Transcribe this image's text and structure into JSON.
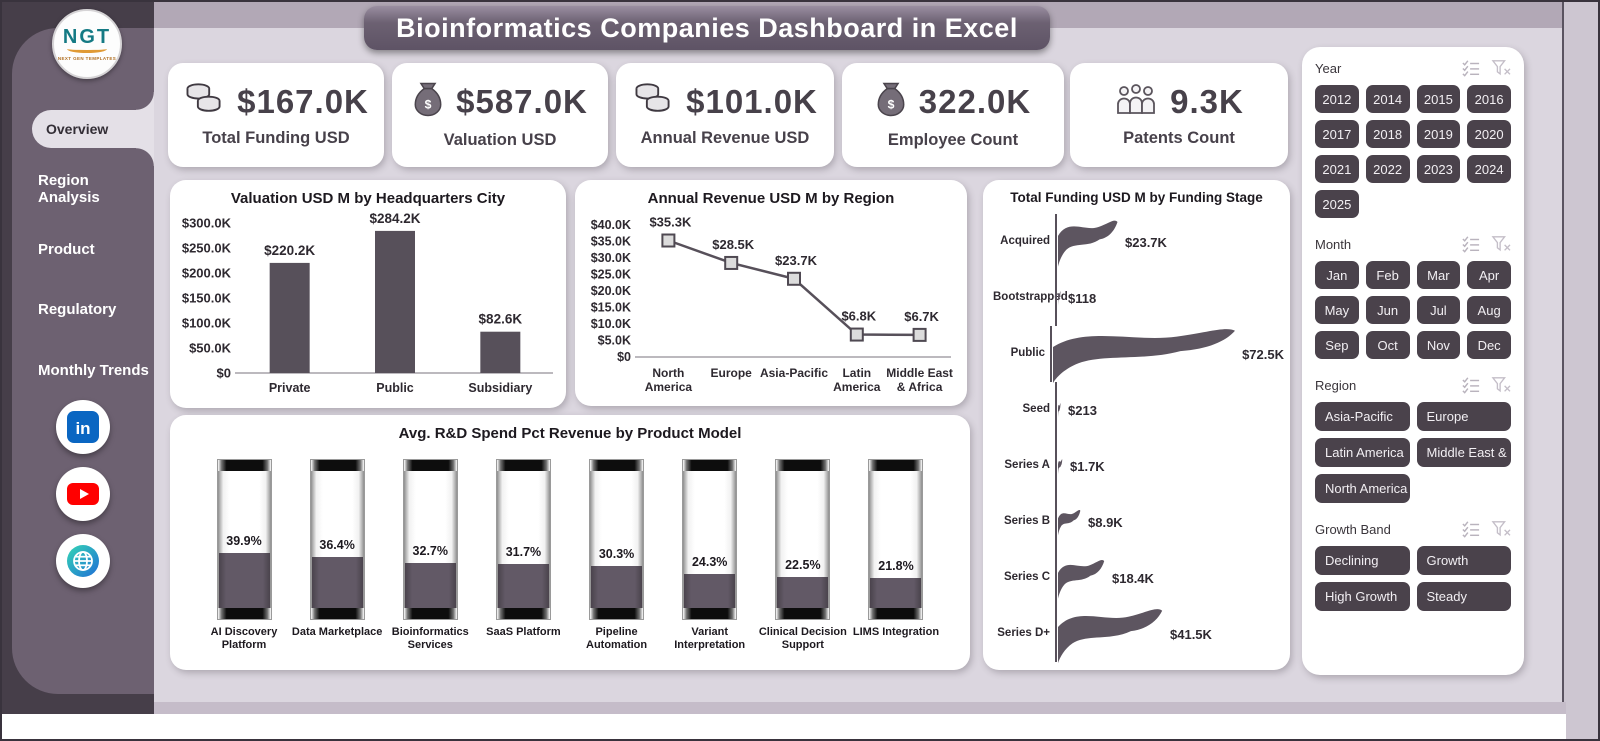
{
  "title_banner": "Bioinformatics Companies Dashboard in Excel",
  "logo": {
    "text": "NGT",
    "subtext": "NEXT GEN TEMPLATES"
  },
  "sidebar": {
    "items": [
      {
        "label": "Overview",
        "active": true
      },
      {
        "label": "Region Analysis",
        "active": false
      },
      {
        "label": "Product",
        "active": false
      },
      {
        "label": "Regulatory",
        "active": false
      },
      {
        "label": "Monthly Trends",
        "active": false
      }
    ],
    "social": [
      "linkedin",
      "youtube",
      "website"
    ]
  },
  "kpis": [
    {
      "icon": "coins-icon",
      "value": "$167.0K",
      "label": "Total Funding USD"
    },
    {
      "icon": "money-bag-icon",
      "value": "$587.0K",
      "label": "Valuation USD"
    },
    {
      "icon": "coins-icon",
      "value": "$101.0K",
      "label": "Annual Revenue USD"
    },
    {
      "icon": "money-bag-icon",
      "value": "322.0K",
      "label": "Employee Count"
    },
    {
      "icon": "people-icon",
      "value": "9.3K",
      "label": "Patents Count"
    }
  ],
  "chart_data": [
    {
      "type": "bar",
      "title": "Valuation USD M by Headquarters City",
      "categories": [
        "Private",
        "Public",
        "Subsidiary"
      ],
      "values": [
        220.2,
        284.2,
        82.6
      ],
      "value_labels": [
        "$220.2K",
        "$284.2K",
        "$82.6K"
      ],
      "yticks": [
        "$300.0K",
        "$250.0K",
        "$200.0K",
        "$150.0K",
        "$100.0K",
        "$50.0K",
        "$0"
      ],
      "ylim": [
        0,
        300
      ],
      "xlabel": "",
      "ylabel": "",
      "grid": false,
      "legend": "none"
    },
    {
      "type": "line",
      "title": "Annual Revenue USD M by Region",
      "categories": [
        [
          "North",
          "America"
        ],
        [
          "Europe"
        ],
        [
          "Asia-Pacific"
        ],
        [
          "Latin",
          "America"
        ],
        [
          "Middle East",
          "& Africa"
        ]
      ],
      "values": [
        35.3,
        28.5,
        23.7,
        6.8,
        6.7
      ],
      "value_labels": [
        "$35.3K",
        "$28.5K",
        "$23.7K",
        "$6.8K",
        "$6.7K"
      ],
      "yticks": [
        "$40.0K",
        "$35.0K",
        "$30.0K",
        "$25.0K",
        "$20.0K",
        "$15.0K",
        "$10.0K",
        "$5.0K",
        "$0"
      ],
      "ylim": [
        0,
        40
      ],
      "marker": "square",
      "grid": false,
      "legend": "none"
    },
    {
      "type": "bar",
      "subtype": "horizontal-flag",
      "title": "Total Funding USD M by Funding Stage",
      "categories": [
        "Acquired",
        "Bootstrapped",
        "Public",
        "Seed",
        "Series A",
        "Series B",
        "Series C",
        "Series D+"
      ],
      "values": [
        23.7,
        0.118,
        72.5,
        0.213,
        1.7,
        8.9,
        18.4,
        41.5
      ],
      "value_labels": [
        "$23.7K",
        "$118",
        "$72.5K",
        "$213",
        "$1.7K",
        "$8.9K",
        "$18.4K",
        "$41.5K"
      ],
      "xlim": [
        0,
        72.5
      ],
      "grid": false,
      "legend": "none"
    },
    {
      "type": "bar",
      "subtype": "thermometer",
      "title": "Avg. R&D Spend Pct Revenue by Product Model",
      "categories": [
        [
          "AI Discovery",
          "Platform"
        ],
        [
          "Data Marketplace"
        ],
        [
          "Bioinformatics",
          "Services"
        ],
        [
          "SaaS Platform"
        ],
        [
          "Pipeline Automation"
        ],
        [
          "Variant",
          "Interpretation"
        ],
        [
          "Clinical Decision",
          "Support"
        ],
        [
          "LIMS Integration"
        ]
      ],
      "values": [
        39.9,
        36.4,
        32.7,
        31.7,
        30.3,
        24.3,
        22.5,
        21.8
      ],
      "value_labels": [
        "39.9%",
        "36.4%",
        "32.7%",
        "31.7%",
        "30.3%",
        "24.3%",
        "22.5%",
        "21.8%"
      ],
      "ylim": [
        0,
        100
      ],
      "grid": false,
      "legend": "none"
    }
  ],
  "slicers": [
    {
      "title": "Year",
      "columns": 4,
      "options": [
        "2012",
        "2014",
        "2015",
        "2016",
        "2017",
        "2018",
        "2019",
        "2020",
        "2021",
        "2022",
        "2023",
        "2024",
        "2025"
      ]
    },
    {
      "title": "Month",
      "columns": 4,
      "options": [
        "Jan",
        "Feb",
        "Mar",
        "Apr",
        "May",
        "Jun",
        "Jul",
        "Aug",
        "Sep",
        "Oct",
        "Nov",
        "Dec"
      ]
    },
    {
      "title": "Region",
      "columns": 2,
      "options": [
        "Asia-Pacific",
        "Europe",
        "Latin America",
        "Middle East & ...",
        "North America"
      ]
    },
    {
      "title": "Growth Band",
      "columns": 2,
      "options": [
        "Declining",
        "Growth",
        "High Growth",
        "Steady"
      ]
    }
  ],
  "colors": {
    "sidebar": "#6d6171",
    "backing": "#463e49",
    "main_bg": "#dbd6df",
    "band": "#b2a8b6",
    "banner": "#5e5365",
    "chart_dark": "#57505a",
    "slicer_button": "#4a424b",
    "linkedin": "#0a66c2",
    "youtube": "#ff0000",
    "globe_teal": "#35d6b5",
    "globe_blue": "#1f6ed6"
  }
}
